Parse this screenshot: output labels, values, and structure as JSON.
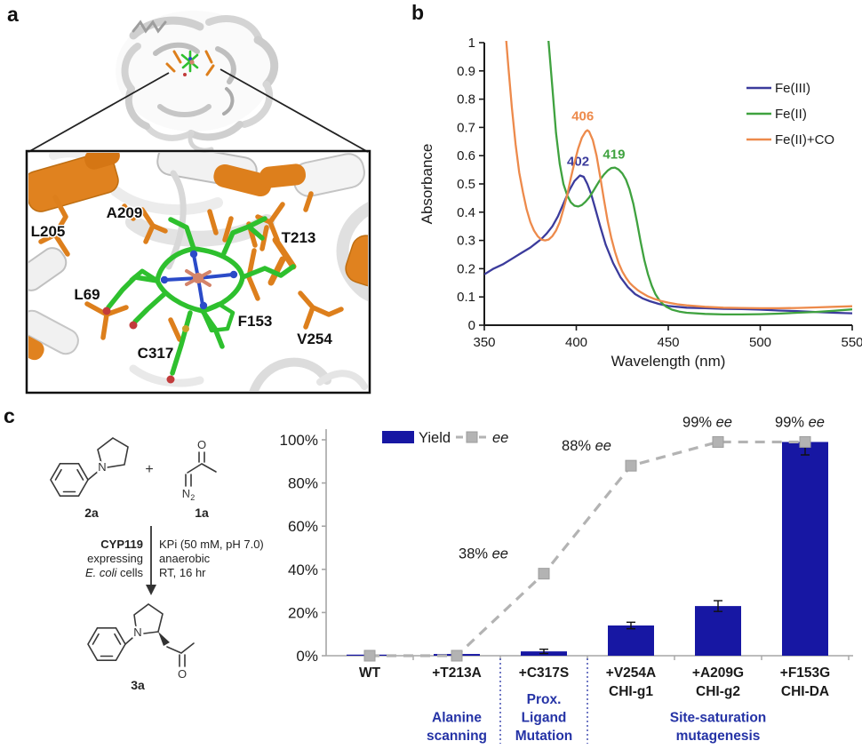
{
  "panel_a": {
    "label": "a",
    "residue_labels": [
      "L205",
      "A209",
      "T213",
      "L69",
      "F153",
      "C317",
      "V254"
    ],
    "colors": {
      "highlight_orange": "#DD7F1C",
      "heme_green": "#2EC02E",
      "iron_salmon": "#D4846A",
      "nitrogen_blue": "#2B4BC8",
      "oxygen_red": "#C23B3B",
      "ribbon_gray": "#E6E6E6"
    }
  },
  "panel_b": {
    "label": "b"
  },
  "panel_c": {
    "label": "c",
    "scheme": {
      "reactant_amine_label": "2a",
      "reactant_diazo_label": "1a",
      "product_label": "3a",
      "plus_sign": "+",
      "atom_n": "N",
      "atom_o": "O",
      "atom_n2_base": "N",
      "atom_n2_sub": "2",
      "catalyst_line1": "CYP119",
      "catalyst_line2": "expressing",
      "catalyst_line3_italic": "E. coli",
      "catalyst_line3_rest": " cells",
      "conditions_line1": "KPi (50 mM, pH 7.0)",
      "conditions_line2": "anaerobic",
      "conditions_line3": "RT, 16 hr"
    }
  },
  "chart_data": [
    {
      "type": "line",
      "panel": "b",
      "xlabel": "Wavelength (nm)",
      "ylabel": "Absorbance",
      "xlim": [
        350,
        550
      ],
      "ylim": [
        0,
        1
      ],
      "xticks": [
        350,
        400,
        450,
        500,
        550
      ],
      "yticks": [
        0,
        0.1,
        0.2,
        0.3,
        0.4,
        0.5,
        0.6,
        0.7,
        0.8,
        0.9,
        1
      ],
      "legend_position": "right",
      "grid": false,
      "series": [
        {
          "name": "Fe(III)",
          "color": "#3B3B9C",
          "peak_label": "402",
          "peak_label_pos": [
            401,
            0.565
          ],
          "points": [
            [
              350,
              0.18
            ],
            [
              355,
              0.2
            ],
            [
              360,
              0.215
            ],
            [
              365,
              0.235
            ],
            [
              370,
              0.255
            ],
            [
              375,
              0.275
            ],
            [
              378,
              0.29
            ],
            [
              381,
              0.305
            ],
            [
              384,
              0.325
            ],
            [
              387,
              0.35
            ],
            [
              390,
              0.385
            ],
            [
              393,
              0.43
            ],
            [
              396,
              0.475
            ],
            [
              399,
              0.51
            ],
            [
              402,
              0.53
            ],
            [
              404,
              0.525
            ],
            [
              406,
              0.5
            ],
            [
              408,
              0.465
            ],
            [
              410,
              0.42
            ],
            [
              413,
              0.35
            ],
            [
              416,
              0.285
            ],
            [
              420,
              0.22
            ],
            [
              424,
              0.17
            ],
            [
              428,
              0.135
            ],
            [
              432,
              0.11
            ],
            [
              436,
              0.095
            ],
            [
              440,
              0.085
            ],
            [
              445,
              0.075
            ],
            [
              450,
              0.068
            ],
            [
              460,
              0.062
            ],
            [
              470,
              0.06
            ],
            [
              480,
              0.058
            ],
            [
              490,
              0.057
            ],
            [
              500,
              0.055
            ],
            [
              510,
              0.052
            ],
            [
              520,
              0.05
            ],
            [
              530,
              0.047
            ],
            [
              540,
              0.044
            ],
            [
              550,
              0.042
            ]
          ]
        },
        {
          "name": "Fe(II)",
          "color": "#3FA23F",
          "peak_label": "419",
          "peak_label_pos": [
            420.5,
            0.59
          ],
          "points": [
            [
              381,
              1.3
            ],
            [
              383,
              1.15
            ],
            [
              385,
              1.0
            ],
            [
              387,
              0.84
            ],
            [
              389,
              0.68
            ],
            [
              391,
              0.57
            ],
            [
              393,
              0.5
            ],
            [
              395,
              0.46
            ],
            [
              397,
              0.435
            ],
            [
              399,
              0.423
            ],
            [
              401,
              0.42
            ],
            [
              403,
              0.425
            ],
            [
              405,
              0.437
            ],
            [
              407,
              0.452
            ],
            [
              409,
              0.472
            ],
            [
              411,
              0.494
            ],
            [
              413,
              0.515
            ],
            [
              415,
              0.533
            ],
            [
              417,
              0.547
            ],
            [
              419,
              0.556
            ],
            [
              421,
              0.558
            ],
            [
              423,
              0.551
            ],
            [
              425,
              0.537
            ],
            [
              427,
              0.515
            ],
            [
              429,
              0.48
            ],
            [
              431,
              0.43
            ],
            [
              433,
              0.365
            ],
            [
              435,
              0.295
            ],
            [
              437,
              0.23
            ],
            [
              439,
              0.18
            ],
            [
              441,
              0.14
            ],
            [
              443,
              0.11
            ],
            [
              445,
              0.09
            ],
            [
              447,
              0.075
            ],
            [
              449,
              0.065
            ],
            [
              452,
              0.055
            ],
            [
              456,
              0.048
            ],
            [
              460,
              0.044
            ],
            [
              470,
              0.04
            ],
            [
              480,
              0.038
            ],
            [
              490,
              0.038
            ],
            [
              500,
              0.039
            ],
            [
              510,
              0.041
            ],
            [
              520,
              0.044
            ],
            [
              530,
              0.047
            ],
            [
              540,
              0.051
            ],
            [
              550,
              0.056
            ]
          ]
        },
        {
          "name": "Fe(II)+CO",
          "color": "#ED8A4B",
          "peak_label": "406",
          "peak_label_pos": [
            403.5,
            0.725
          ],
          "points": [
            [
              359,
              1.3
            ],
            [
              361,
              1.08
            ],
            [
              363,
              0.92
            ],
            [
              365,
              0.77
            ],
            [
              367,
              0.64
            ],
            [
              369,
              0.54
            ],
            [
              371,
              0.47
            ],
            [
              373,
              0.41
            ],
            [
              375,
              0.365
            ],
            [
              377,
              0.335
            ],
            [
              379,
              0.315
            ],
            [
              381,
              0.303
            ],
            [
              383,
              0.3
            ],
            [
              385,
              0.303
            ],
            [
              387,
              0.315
            ],
            [
              389,
              0.335
            ],
            [
              391,
              0.365
            ],
            [
              393,
              0.41
            ],
            [
              395,
              0.46
            ],
            [
              397,
              0.52
            ],
            [
              399,
              0.575
            ],
            [
              401,
              0.625
            ],
            [
              403,
              0.663
            ],
            [
              405,
              0.685
            ],
            [
              406,
              0.69
            ],
            [
              407,
              0.685
            ],
            [
              409,
              0.655
            ],
            [
              411,
              0.6
            ],
            [
              413,
              0.525
            ],
            [
              415,
              0.445
            ],
            [
              417,
              0.37
            ],
            [
              419,
              0.31
            ],
            [
              421,
              0.26
            ],
            [
              423,
              0.22
            ],
            [
              425,
              0.19
            ],
            [
              427,
              0.168
            ],
            [
              429,
              0.15
            ],
            [
              431,
              0.137
            ],
            [
              433,
              0.126
            ],
            [
              435,
              0.117
            ],
            [
              437,
              0.109
            ],
            [
              439,
              0.102
            ],
            [
              442,
              0.094
            ],
            [
              446,
              0.086
            ],
            [
              450,
              0.08
            ],
            [
              455,
              0.074
            ],
            [
              460,
              0.07
            ],
            [
              470,
              0.065
            ],
            [
              480,
              0.062
            ],
            [
              490,
              0.061
            ],
            [
              500,
              0.06
            ],
            [
              510,
              0.06
            ],
            [
              520,
              0.061
            ],
            [
              530,
              0.063
            ],
            [
              540,
              0.065
            ],
            [
              550,
              0.067
            ]
          ]
        }
      ]
    },
    {
      "type": "bar",
      "panel": "c",
      "ylim": [
        0,
        100
      ],
      "yticks": [
        0,
        20,
        40,
        60,
        80,
        100
      ],
      "ytick_labels": [
        "0%",
        "20%",
        "40%",
        "60%",
        "80%",
        "100%"
      ],
      "categories": [
        [
          "WT"
        ],
        [
          "+T213A"
        ],
        [
          "+C317S"
        ],
        [
          "+V254A",
          "CHI-g1"
        ],
        [
          "+A209G",
          "CHI-g2"
        ],
        [
          "+F153G",
          "CHI-DA"
        ]
      ],
      "series": [
        {
          "name": "Yield",
          "type": "bar",
          "color": "#1717A3",
          "values": [
            0.5,
            0.8,
            2,
            14,
            23,
            99
          ],
          "errors": [
            0,
            0,
            1,
            1.5,
            2.5,
            6
          ]
        },
        {
          "name": "ee",
          "type": "line",
          "color": "#B3B3B3",
          "values": [
            0,
            0,
            38,
            88,
            99,
            99
          ]
        }
      ],
      "annotations": [
        {
          "value": "38%",
          "label": "ee",
          "category": 2,
          "dx": -68
        },
        {
          "value": "88%",
          "label": "ee",
          "category": 3,
          "dx": -50
        },
        {
          "value": "99%",
          "label": "ee",
          "category": 4,
          "dx": -12
        },
        {
          "value": "99%",
          "label": "ee",
          "category": 5,
          "dx": -6
        }
      ],
      "group_dividers_after": [
        1,
        2
      ],
      "groups": [
        {
          "lines": [
            "Alanine",
            "scanning"
          ],
          "center_cat": 1
        },
        {
          "lines": [
            "Prox.",
            "Ligand",
            "Mutation"
          ],
          "center_cat": 2
        },
        {
          "lines": [
            "Site-saturation",
            "mutagenesis"
          ],
          "center_cat": 4
        }
      ],
      "group_label_color": "#2533A6",
      "axis_color": "#A6A6A6",
      "error_color": "#111111",
      "marker_stroke": "#9C9C9C"
    }
  ]
}
